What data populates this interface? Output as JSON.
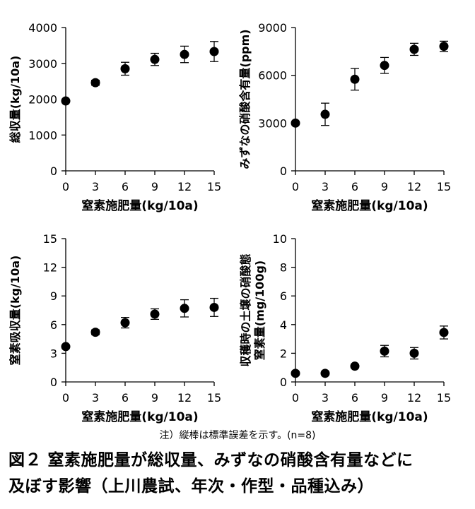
{
  "figure": {
    "note": "注）縦棒は標準誤差を示す。(n=8)",
    "caption_line1": "図２ 窒素施肥量が総収量、みずなの硝酸含有量などに",
    "caption_line2": "及ぼす影響（上川農試、年次・作型・品種込み）"
  },
  "chart_data": [
    {
      "type": "scatter",
      "id": "total-yield",
      "x": [
        0,
        3,
        6,
        9,
        12,
        15
      ],
      "y": [
        1950,
        2460,
        2850,
        3110,
        3250,
        3330
      ],
      "err": [
        0,
        70,
        180,
        170,
        230,
        280
      ],
      "xlabel": "窒素施肥量(kg/10a)",
      "ylabel": "総収量(kg/10a)",
      "xlim": [
        0,
        15
      ],
      "ylim": [
        0,
        4000
      ],
      "xticks": [
        "0",
        "3",
        "6",
        "9",
        "12",
        "15"
      ],
      "yticks": [
        "0",
        "1000",
        "2000",
        "3000",
        "4000"
      ]
    },
    {
      "type": "scatter",
      "id": "nitrate-content",
      "x": [
        0,
        3,
        6,
        9,
        12,
        15
      ],
      "y": [
        3000,
        3550,
        5750,
        6620,
        7630,
        7820
      ],
      "err": [
        0,
        700,
        680,
        500,
        380,
        320
      ],
      "xlabel": "窒素施肥量(kg/10a)",
      "ylabel": "みずなの硝酸含有量(ppm)",
      "xlim": [
        0,
        15
      ],
      "ylim": [
        0,
        9000
      ],
      "xticks": [
        "0",
        "3",
        "6",
        "9",
        "12",
        "15"
      ],
      "yticks": [
        "0",
        "3000",
        "6000",
        "9000"
      ]
    },
    {
      "type": "scatter",
      "id": "nitrogen-uptake",
      "x": [
        0,
        3,
        6,
        9,
        12,
        15
      ],
      "y": [
        3.7,
        5.2,
        6.2,
        7.1,
        7.7,
        7.8
      ],
      "err": [
        0,
        0.25,
        0.55,
        0.55,
        0.9,
        0.95
      ],
      "xlabel": "窒素施肥量(kg/10a)",
      "ylabel": "窒素吸収量(kg/10a)",
      "xlim": [
        0,
        15
      ],
      "ylim": [
        0,
        15
      ],
      "xticks": [
        "0",
        "3",
        "6",
        "9",
        "12",
        "15"
      ],
      "yticks": [
        "0",
        "3",
        "6",
        "9",
        "12",
        "15"
      ]
    },
    {
      "type": "scatter",
      "id": "soil-nitrate",
      "x": [
        0,
        3,
        6,
        9,
        12,
        15
      ],
      "y": [
        0.6,
        0.6,
        1.1,
        2.15,
        2.0,
        3.45
      ],
      "err": [
        0.08,
        0.08,
        0.12,
        0.4,
        0.4,
        0.45
      ],
      "xlabel": "窒素施肥量(kg/10a)",
      "ylabel": "収穫時の土壌の硝酸態窒素量(mg/100g)",
      "ylabel_line1": "収穫時の土壌の硝酸態",
      "ylabel_line2": "窒素量(mg/100g)",
      "xlim": [
        0,
        15
      ],
      "ylim": [
        0,
        10
      ],
      "xticks": [
        "0",
        "3",
        "6",
        "9",
        "12",
        "15"
      ],
      "yticks": [
        "0",
        "2",
        "4",
        "6",
        "8",
        "10"
      ]
    }
  ]
}
